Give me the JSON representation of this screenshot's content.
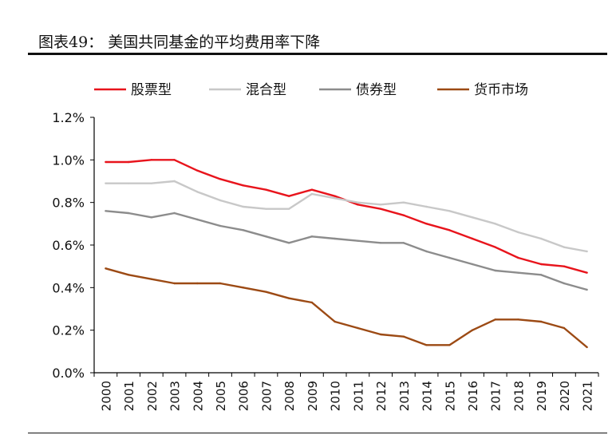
{
  "title": "图表49：  美国共同基金的平均费用率下降",
  "chart_data": {
    "type": "line",
    "title": "",
    "xlabel": "",
    "ylabel": "",
    "ylim": [
      0,
      1.2
    ],
    "yticks": [
      "0.0%",
      "0.2%",
      "0.4%",
      "0.6%",
      "0.8%",
      "1.0%",
      "1.2%"
    ],
    "legend_position": "top",
    "grid": false,
    "categories": [
      "2000",
      "2001",
      "2002",
      "2003",
      "2004",
      "2005",
      "2006",
      "2007",
      "2008",
      "2009",
      "2010",
      "2011",
      "2012",
      "2013",
      "2014",
      "2015",
      "2016",
      "2017",
      "2018",
      "2019",
      "2020",
      "2021"
    ],
    "series": [
      {
        "name": "股票型",
        "color": "#e8141c",
        "values": [
          0.99,
          0.99,
          1.0,
          1.0,
          0.95,
          0.91,
          0.88,
          0.86,
          0.83,
          0.86,
          0.83,
          0.79,
          0.77,
          0.74,
          0.7,
          0.67,
          0.63,
          0.59,
          0.54,
          0.51,
          0.5,
          0.47
        ]
      },
      {
        "name": "混合型",
        "color": "#c8c8c8",
        "values": [
          0.89,
          0.89,
          0.89,
          0.9,
          0.85,
          0.81,
          0.78,
          0.77,
          0.77,
          0.84,
          0.82,
          0.8,
          0.79,
          0.8,
          0.78,
          0.76,
          0.73,
          0.7,
          0.66,
          0.63,
          0.59,
          0.57
        ]
      },
      {
        "name": "债券型",
        "color": "#8c8c8c",
        "values": [
          0.76,
          0.75,
          0.73,
          0.75,
          0.72,
          0.69,
          0.67,
          0.64,
          0.61,
          0.64,
          0.63,
          0.62,
          0.61,
          0.61,
          0.57,
          0.54,
          0.51,
          0.48,
          0.47,
          0.46,
          0.42,
          0.39
        ]
      },
      {
        "name": "货币市场",
        "color": "#9c4a14",
        "values": [
          0.49,
          0.46,
          0.44,
          0.42,
          0.42,
          0.42,
          0.4,
          0.38,
          0.35,
          0.33,
          0.24,
          0.21,
          0.18,
          0.17,
          0.13,
          0.13,
          0.2,
          0.25,
          0.25,
          0.24,
          0.21,
          0.12
        ]
      }
    ]
  }
}
